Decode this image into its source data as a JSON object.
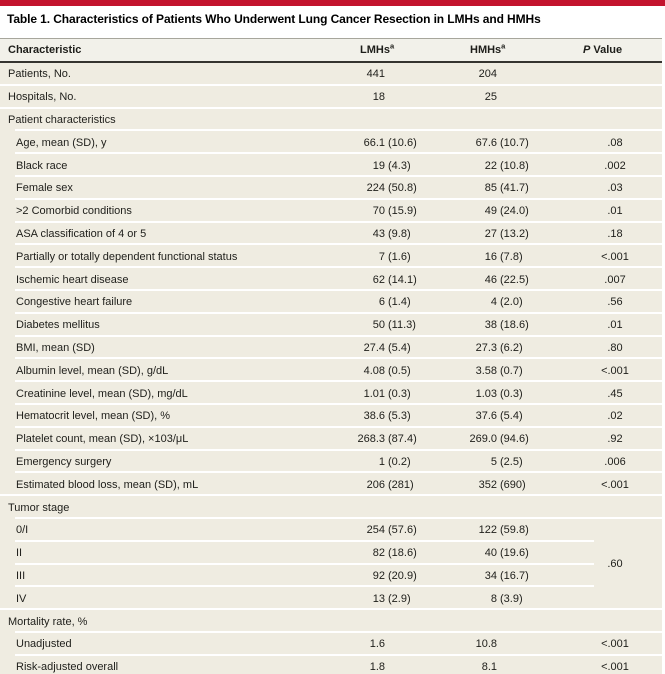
{
  "accent_color": "#c3142d",
  "table": {
    "title": "Table 1. Characteristics of Patients Who Underwent Lung Cancer Resection in LMHs and HMHs",
    "header": {
      "characteristic": "Characteristic",
      "lmhs": "LMHs",
      "lmhs_sup": "a",
      "hmhs": "HMHs",
      "hmhs_sup": "a",
      "p_italic": "P",
      "p_rest": "Value"
    },
    "rows": [
      {
        "label": "Patients, No.",
        "indent": 0,
        "lmhs": "441",
        "hmhs": "204",
        "p": ""
      },
      {
        "label": "Hospitals, No.",
        "indent": 0,
        "lmhs": "18",
        "hmhs": "25",
        "p": ""
      },
      {
        "label": "Patient characteristics",
        "section": true,
        "indent": 0
      },
      {
        "label": "Age, mean (SD), y",
        "indent": 1,
        "lmhs": "66.1 (10.6)",
        "hmhs": "67.6 (10.7)",
        "p": ".08"
      },
      {
        "label": "Black race",
        "indent": 1,
        "lmhs": "19 (4.3)",
        "hmhs": "22 (10.8)",
        "p": ".002"
      },
      {
        "label": "Female sex",
        "indent": 1,
        "lmhs": "224 (50.8)",
        "hmhs": "85 (41.7)",
        "p": ".03"
      },
      {
        "label": ">2 Comorbid conditions",
        "indent": 1,
        "lmhs": "70 (15.9)",
        "hmhs": "49 (24.0)",
        "p": ".01"
      },
      {
        "label": "ASA classification of 4 or 5",
        "indent": 1,
        "lmhs": "43 (9.8)",
        "hmhs": "27 (13.2)",
        "p": ".18"
      },
      {
        "label": "Partially or totally dependent functional status",
        "indent": 1,
        "lmhs": "7 (1.6)",
        "hmhs": "16 (7.8)",
        "p": "<.001"
      },
      {
        "label": "Ischemic heart disease",
        "indent": 1,
        "lmhs": "62 (14.1)",
        "hmhs": "46 (22.5)",
        "p": ".007"
      },
      {
        "label": "Congestive heart failure",
        "indent": 1,
        "lmhs": "6 (1.4)",
        "hmhs": "4 (2.0)",
        "p": ".56"
      },
      {
        "label": "Diabetes mellitus",
        "indent": 1,
        "lmhs": "50 (11.3)",
        "hmhs": "38 (18.6)",
        "p": ".01"
      },
      {
        "label": "BMI, mean (SD)",
        "indent": 1,
        "lmhs": "27.4 (5.4)",
        "hmhs": "27.3 (6.2)",
        "p": ".80"
      },
      {
        "label": "Albumin level, mean (SD), g/dL",
        "indent": 1,
        "lmhs": "4.08 (0.5)",
        "hmhs": "3.58 (0.7)",
        "p": "<.001"
      },
      {
        "label": "Creatinine level, mean (SD), mg/dL",
        "indent": 1,
        "lmhs": "1.01 (0.3)",
        "hmhs": "1.03 (0.3)",
        "p": ".45"
      },
      {
        "label": "Hematocrit level, mean (SD), %",
        "indent": 1,
        "lmhs": "38.6 (5.3)",
        "hmhs": "37.6 (5.4)",
        "p": ".02"
      },
      {
        "label": "Platelet count, mean (SD), ×103/μL",
        "indent": 1,
        "lmhs": "268.3 (87.4)",
        "hmhs": "269.0 (94.6)",
        "p": ".92"
      },
      {
        "label": "Emergency surgery",
        "indent": 1,
        "lmhs": "1 (0.2)",
        "hmhs": "5 (2.5)",
        "p": ".006"
      },
      {
        "label": "Estimated blood loss, mean (SD), mL",
        "indent": 1,
        "lmhs": "206 (281)",
        "hmhs": "352 (690)",
        "p": "<.001"
      },
      {
        "label": "Tumor stage",
        "section": true,
        "indent": 0
      },
      {
        "label": "0/I",
        "indent": 1,
        "lmhs": "254 (57.6)",
        "hmhs": "122 (59.8)",
        "p": "",
        "group": "tumor"
      },
      {
        "label": "II",
        "indent": 1,
        "lmhs": "82 (18.6)",
        "hmhs": "40 (19.6)",
        "p": "",
        "group": "tumor"
      },
      {
        "label": "III",
        "indent": 1,
        "lmhs": "92 (20.9)",
        "hmhs": "34 (16.7)",
        "p": "",
        "group": "tumor"
      },
      {
        "label": "IV",
        "indent": 1,
        "lmhs": "13 (2.9)",
        "hmhs": "8 (3.9)",
        "p": "",
        "group": "tumor"
      },
      {
        "label": "Mortality rate, %",
        "section": true,
        "indent": 0
      },
      {
        "label": "Unadjusted",
        "indent": 1,
        "lmhs": "1.6",
        "hmhs": "10.8",
        "p": "<.001"
      },
      {
        "label": "Risk-adjusted overall",
        "indent": 1,
        "lmhs": "1.8",
        "hmhs": "8.1",
        "p": "<.001"
      }
    ],
    "tumor_stage_span_p": ".60"
  }
}
